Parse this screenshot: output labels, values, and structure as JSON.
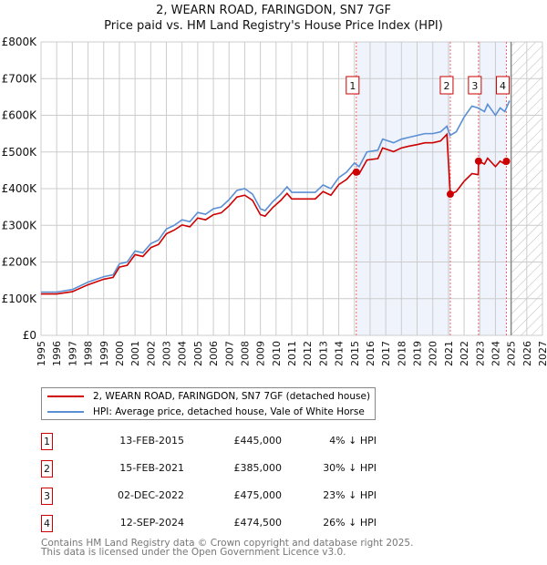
{
  "chart_data": {
    "type": "line",
    "title": "2, WEARN ROAD, FARINGDON, SN7 7GF",
    "subtitle": "Price paid vs. HM Land Registry's House Price Index (HPI)",
    "xlim": [
      1995,
      2027
    ],
    "ylim": [
      0,
      800000
    ],
    "x_ticks": [
      "1995",
      "1996",
      "1997",
      "1998",
      "1999",
      "2000",
      "2001",
      "2002",
      "2003",
      "2004",
      "2005",
      "2006",
      "2007",
      "2008",
      "2009",
      "2010",
      "2011",
      "2012",
      "2013",
      "2014",
      "2015",
      "2016",
      "2017",
      "2018",
      "2019",
      "2020",
      "2021",
      "2022",
      "2023",
      "2024",
      "2025",
      "2026",
      "2027"
    ],
    "y_ticks": [
      {
        "v": 0,
        "label": "£0"
      },
      {
        "v": 100000,
        "label": "£100K"
      },
      {
        "v": 200000,
        "label": "£200K"
      },
      {
        "v": 300000,
        "label": "£300K"
      },
      {
        "v": 400000,
        "label": "£400K"
      },
      {
        "v": 500000,
        "label": "£500K"
      },
      {
        "v": 600000,
        "label": "£600K"
      },
      {
        "v": 700000,
        "label": "£700K"
      },
      {
        "v": 800000,
        "label": "£800K"
      }
    ],
    "grid": true,
    "forecast_start": 2025,
    "shaded_ranges": [
      [
        2015.12,
        2021.12
      ],
      [
        2022.92,
        2024.7
      ]
    ],
    "series": [
      {
        "name": "2, WEARN ROAD, FARINGDON, SN7 7GF (detached house)",
        "color": "#cc0000",
        "x": [
          1995,
          1996,
          1997,
          1998,
          1999,
          1999.6,
          2000,
          2000.5,
          2001,
          2001.5,
          2002,
          2002.5,
          2003,
          2003.5,
          2004,
          2004.5,
          2005,
          2005.5,
          2006,
          2006.5,
          2007,
          2007.5,
          2008,
          2008.5,
          2009,
          2009.3,
          2009.8,
          2010.3,
          2010.7,
          2011,
          2012,
          2012.5,
          2013,
          2013.5,
          2014,
          2014.5,
          2015,
          2015.12,
          2015.3,
          2015.8,
          2016.5,
          2016.8,
          2017.5,
          2018,
          2018.5,
          2019,
          2019.5,
          2020,
          2020.5,
          2020.9,
          2021.12,
          2021.5,
          2022,
          2022.5,
          2022.9,
          2022.92,
          2023.3,
          2023.5,
          2024,
          2024.3,
          2024.6,
          2024.7
        ],
        "y": [
          113,
          113,
          119,
          138,
          153,
          158,
          186,
          191,
          220,
          215,
          239,
          248,
          277,
          287,
          301,
          296,
          320,
          315,
          329,
          334,
          353,
          377,
          382,
          368,
          329,
          325,
          349,
          368,
          387,
          372,
          372,
          372,
          392,
          382,
          411,
          425,
          449,
          445,
          440,
          478,
          482,
          511,
          501,
          511,
          516,
          520,
          525,
          525,
          530,
          548,
          385,
          392,
          420,
          441,
          438,
          475,
          467,
          483,
          460,
          475,
          467,
          474.5
        ]
      },
      {
        "name": "HPI: Average price, detached house, Vale of White Horse",
        "color": "#5b8fd4",
        "x": [
          1995,
          1996,
          1997,
          1998,
          1999,
          1999.6,
          2000,
          2000.5,
          2001,
          2001.5,
          2002,
          2002.5,
          2003,
          2003.5,
          2004,
          2004.5,
          2005,
          2005.5,
          2006,
          2006.5,
          2007,
          2007.5,
          2008,
          2008.5,
          2009,
          2009.3,
          2009.8,
          2010.3,
          2010.7,
          2011,
          2012,
          2012.5,
          2013,
          2013.5,
          2014,
          2014.5,
          2015,
          2015.3,
          2015.8,
          2016.5,
          2016.8,
          2017.5,
          2018,
          2018.5,
          2019,
          2019.5,
          2020,
          2020.5,
          2020.9,
          2021.1,
          2021.5,
          2022,
          2022.5,
          2022.9,
          2023.3,
          2023.5,
          2024,
          2024.3,
          2024.6,
          2024.9
        ],
        "y": [
          118,
          118,
          125,
          145,
          160,
          165,
          195,
          200,
          230,
          225,
          250,
          260,
          290,
          300,
          315,
          310,
          335,
          330,
          345,
          350,
          370,
          395,
          400,
          385,
          345,
          340,
          365,
          385,
          405,
          390,
          390,
          390,
          410,
          400,
          430,
          445,
          470,
          460,
          500,
          505,
          535,
          525,
          535,
          540,
          545,
          550,
          550,
          555,
          570,
          545,
          555,
          595,
          625,
          620,
          610,
          630,
          600,
          620,
          610,
          640
        ]
      }
    ],
    "y_units_multiplier": 1000,
    "sales": [
      {
        "n": "1",
        "x": 2015.12,
        "value": 445000,
        "date": "13-FEB-2015",
        "price": "£445,000",
        "hpi": "4% ↓ HPI"
      },
      {
        "n": "2",
        "x": 2021.12,
        "value": 385000,
        "date": "15-FEB-2021",
        "price": "£385,000",
        "hpi": "30% ↓ HPI"
      },
      {
        "n": "3",
        "x": 2022.92,
        "value": 475000,
        "date": "02-DEC-2022",
        "price": "£475,000",
        "hpi": "23% ↓ HPI"
      },
      {
        "n": "4",
        "x": 2024.7,
        "value": 474500,
        "date": "12-SEP-2024",
        "price": "£474,500",
        "hpi": "26% ↓ HPI"
      }
    ],
    "legend_position": "bottom"
  },
  "legend": {
    "property": "2, WEARN ROAD, FARINGDON, SN7 7GF (detached house)",
    "hpi": "HPI: Average price, detached house, Vale of White Horse"
  },
  "footer": {
    "line1": "Contains HM Land Registry data © Crown copyright and database right 2025.",
    "line2": "This data is licensed under the Open Government Licence v3.0."
  }
}
